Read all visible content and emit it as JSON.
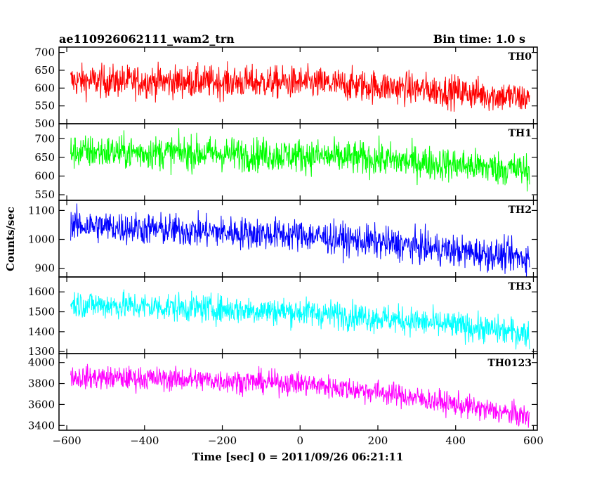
{
  "header": {
    "left_title": "ae110926062111_wam2_trn",
    "right_title": "Bin time: 1.0 s"
  },
  "chart_data": {
    "type": "line",
    "ylabel": "Counts/sec",
    "xlabel": "Time [sec] 0 = 2011/09/26 06:21:11",
    "xlim": [
      -620,
      610
    ],
    "x_ticks": [
      -600,
      -400,
      -200,
      0,
      200,
      400,
      600
    ],
    "x_tick_labels": [
      "−600",
      "−400",
      "−200",
      "0",
      "200",
      "400",
      "600"
    ],
    "x_range": [
      -590,
      590
    ],
    "bin_time_s": 1.0,
    "series": [
      {
        "name": "TH0",
        "color": "#ff0000",
        "ylim": [
          500,
          715
        ],
        "y_ticks": [
          500,
          550,
          600,
          650,
          700
        ],
        "y_tick_labels": [
          "500",
          "550",
          "600",
          "650",
          "700"
        ],
        "trend_points": [
          [
            -590,
            620
          ],
          [
            -300,
            618
          ],
          [
            0,
            615
          ],
          [
            200,
            605
          ],
          [
            400,
            590
          ],
          [
            590,
            570
          ]
        ],
        "noise_amplitude": 45
      },
      {
        "name": "TH1",
        "color": "#00ff00",
        "ylim": [
          535,
          740
        ],
        "y_ticks": [
          550,
          600,
          650,
          700
        ],
        "y_tick_labels": [
          "550",
          "600",
          "650",
          "700"
        ],
        "trend_points": [
          [
            -590,
            665
          ],
          [
            -300,
            662
          ],
          [
            0,
            655
          ],
          [
            200,
            645
          ],
          [
            400,
            630
          ],
          [
            590,
            615
          ]
        ],
        "noise_amplitude": 45
      },
      {
        "name": "TH2",
        "color": "#0000ff",
        "ylim": [
          870,
          1135
        ],
        "y_ticks": [
          900,
          1000,
          1100
        ],
        "y_tick_labels": [
          "900",
          "1000",
          "1100"
        ],
        "trend_points": [
          [
            -590,
            1050
          ],
          [
            -300,
            1030
          ],
          [
            0,
            1015
          ],
          [
            200,
            990
          ],
          [
            400,
            960
          ],
          [
            590,
            935
          ]
        ],
        "noise_amplitude": 55
      },
      {
        "name": "TH3",
        "color": "#00ffff",
        "ylim": [
          1290,
          1675
        ],
        "y_ticks": [
          1300,
          1400,
          1500,
          1600
        ],
        "y_tick_labels": [
          "1300",
          "1400",
          "1500",
          "1600"
        ],
        "trend_points": [
          [
            -590,
            1540
          ],
          [
            -300,
            1520
          ],
          [
            0,
            1500
          ],
          [
            200,
            1470
          ],
          [
            400,
            1430
          ],
          [
            590,
            1390
          ]
        ],
        "noise_amplitude": 70
      },
      {
        "name": "TH0123",
        "color": "#ff00ff",
        "ylim": [
          3355,
          4085
        ],
        "y_ticks": [
          3400,
          3600,
          3800,
          4000
        ],
        "y_tick_labels": [
          "3400",
          "3600",
          "3800",
          "4000"
        ],
        "trend_points": [
          [
            -590,
            3860
          ],
          [
            -300,
            3840
          ],
          [
            0,
            3800
          ],
          [
            200,
            3720
          ],
          [
            400,
            3600
          ],
          [
            590,
            3480
          ]
        ],
        "noise_amplitude": 110
      }
    ]
  }
}
